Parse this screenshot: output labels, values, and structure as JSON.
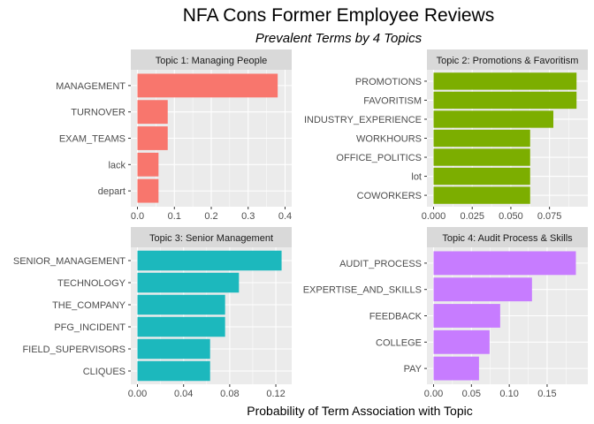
{
  "chart_title": "NFA Cons Former Employee Reviews",
  "chart_subtitle": "Prevalent Terms by 4 Topics",
  "x_axis_label": "Probability of Term Association with Topic",
  "chart_data": [
    {
      "type": "bar",
      "orientation": "horizontal",
      "facet": "Topic 1: Managing People",
      "color": "#F8766D",
      "categories": [
        "MANAGEMENT",
        "TURNOVER",
        "EXAM_TEAMS",
        "lack",
        "depart"
      ],
      "values": [
        0.38,
        0.082,
        0.082,
        0.057,
        0.057
      ],
      "xlim": [
        0,
        0.4
      ],
      "xticks": [
        "0.0",
        "0.1",
        "0.2",
        "0.3",
        "0.4"
      ],
      "xtick_values": [
        0,
        0.1,
        0.2,
        0.3,
        0.4
      ],
      "grid": true
    },
    {
      "type": "bar",
      "orientation": "horizontal",
      "facet": "Topic 2: Promotions & Favoritism",
      "color": "#7CAE00",
      "categories": [
        "PROMOTIONS",
        "FAVORITISM",
        "INDUSTRY_EXPERIENCE",
        "WORKHOURS",
        "OFFICE_POLITICS",
        "lot",
        "COWORKERS"
      ],
      "values": [
        0.0925,
        0.0925,
        0.0775,
        0.0625,
        0.0625,
        0.0625,
        0.0625
      ],
      "xlim": [
        0,
        0.0955
      ],
      "xticks": [
        "0.000",
        "0.025",
        "0.050",
        "0.075"
      ],
      "xtick_values": [
        0,
        0.025,
        0.05,
        0.075
      ],
      "grid": true
    },
    {
      "type": "bar",
      "orientation": "horizontal",
      "facet": "Topic 3: Senior Management",
      "color": "#1CB8BD",
      "categories": [
        "SENIOR_MANAGEMENT",
        "TECHNOLOGY",
        "THE_COMPANY",
        "PFG_INCIDENT",
        "FIELD_SUPERVISORS",
        "CLIQUES"
      ],
      "values": [
        0.125,
        0.088,
        0.076,
        0.076,
        0.063,
        0.063
      ],
      "xlim": [
        0,
        0.128
      ],
      "xticks": [
        "0.00",
        "0.04",
        "0.08",
        "0.12"
      ],
      "xtick_values": [
        0,
        0.04,
        0.08,
        0.12
      ],
      "grid": true
    },
    {
      "type": "bar",
      "orientation": "horizontal",
      "facet": "Topic 4: Audit Process & Skills",
      "color": "#C77CFF",
      "categories": [
        "AUDIT_PROCESS",
        "EXPERTISE_AND_SKILLS",
        "FEEDBACK",
        "COLLEGE",
        "PAY"
      ],
      "values": [
        0.188,
        0.13,
        0.088,
        0.074,
        0.06
      ],
      "xlim": [
        0,
        0.195
      ],
      "xticks": [
        "0.00",
        "0.05",
        "0.10",
        "0.15"
      ],
      "xtick_values": [
        0,
        0.05,
        0.1,
        0.15
      ],
      "grid": true
    }
  ]
}
